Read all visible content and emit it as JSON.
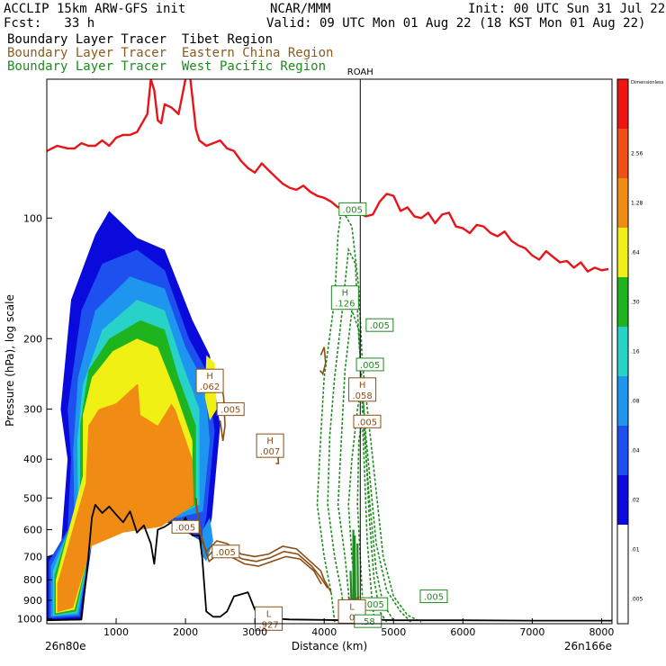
{
  "header": {
    "model": "ACCLIP 15km ARW-GFS init",
    "org": "NCAR/MMM",
    "init": "Init: 00 UTC Sun 31 Jul 22",
    "fcst": "Fcst:   33 h",
    "valid": "Valid: 09 UTC Mon 01 Aug 22 (18 KST Mon 01 Aug 22)"
  },
  "legend_lines": [
    {
      "text": "Boundary Layer Tracer  Tibet Region",
      "color": "#000000"
    },
    {
      "text": "Boundary Layer Tracer  Eastern China Region",
      "color": "#8B5A1E"
    },
    {
      "text": "Boundary Layer Tracer  West Pacific Region",
      "color": "#1F8A1F"
    }
  ],
  "colors": {
    "tropopause": "#E8141A",
    "terrain": "#000000",
    "eastern_china": "#8B4E14",
    "west_pacific": "#1F8A1F"
  },
  "chart_data": {
    "type": "heatmap",
    "xlabel": "Distance (km)",
    "ylabel": "Pressure (hPa), log scale",
    "x_ticks": [
      1000,
      2000,
      3000,
      4000,
      5000,
      6000,
      7000,
      8000
    ],
    "y_ticks": [
      100,
      200,
      300,
      400,
      500,
      600,
      700,
      800,
      900,
      1000
    ],
    "xlim": [
      0,
      8150
    ],
    "ylim_hpa": [
      1030,
      45
    ],
    "y_scale": "log",
    "left_endpoint": "26n80e",
    "right_endpoint": "26n166e",
    "marker": {
      "label": "ROAH",
      "x": 4520
    },
    "colorbar": {
      "title": "Dimensionless",
      "levels": [
        ".005",
        ".01",
        ".02",
        ".04",
        ".08",
        ".16",
        ".30",
        ".64",
        "1.28",
        "2.56"
      ],
      "colors": [
        "#FFFFFF",
        "#FFFFFF",
        "#0A0ADC",
        "#1E50F0",
        "#1E96F0",
        "#28D2C8",
        "#1EB41E",
        "#F0F014",
        "#F08C14",
        "#F05014",
        "#F01414"
      ]
    },
    "series": [
      {
        "name": "tropopause",
        "x": [
          0,
          150,
          300,
          400,
          500,
          600,
          700,
          800,
          900,
          1000,
          1100,
          1200,
          1300,
          1450,
          1500,
          1550,
          1600,
          1650,
          1700,
          1800,
          1900,
          2000,
          2050,
          2100,
          2150,
          2200,
          2300,
          2400,
          2500,
          2600,
          2700,
          2800,
          2900,
          3000,
          3100,
          3200,
          3300,
          3400,
          3500,
          3600,
          3700,
          3800,
          3900,
          4000,
          4100,
          4200,
          4300,
          4400,
          4500,
          4600,
          4700,
          4800,
          4900,
          5000,
          5100,
          5200,
          5300,
          5400,
          5500,
          5600,
          5700,
          5800,
          5900,
          6000,
          6100,
          6200,
          6300,
          6400,
          6500,
          6600,
          6700,
          6800,
          6900,
          7000,
          7100,
          7200,
          7300,
          7400,
          7500,
          7600,
          7700,
          7800,
          7900,
          8000,
          8100
        ],
        "y": [
          68,
          66,
          67,
          67,
          65,
          66,
          66,
          64,
          66,
          63,
          62,
          62,
          61,
          55,
          45,
          48,
          57,
          58,
          52,
          53,
          55,
          45,
          42,
          50,
          60,
          64,
          66,
          65,
          64,
          67,
          68,
          72,
          75,
          77,
          73,
          76,
          79,
          82,
          84,
          85,
          83,
          86,
          88,
          89,
          91,
          94,
          93,
          95,
          97,
          99,
          98,
          91,
          87,
          88,
          96,
          94,
          99,
          100,
          97,
          103,
          98,
          97,
          105,
          106,
          109,
          104,
          105,
          109,
          111,
          108,
          114,
          117,
          119,
          124,
          127,
          121,
          125,
          129,
          128,
          133,
          129,
          136,
          133,
          135,
          134
        ]
      },
      {
        "name": "terrain",
        "x": [
          0,
          500,
          600,
          650,
          700,
          800,
          900,
          1000,
          1100,
          1200,
          1300,
          1400,
          1500,
          1550,
          1600,
          1700,
          1800,
          1900,
          2000,
          2100,
          2200,
          2240,
          2300,
          2400,
          2500,
          2600,
          2700,
          2800,
          2900,
          3000,
          3100,
          3200,
          3300,
          3500,
          4000,
          4300,
          4500,
          4600,
          4700,
          5000,
          6000,
          7000,
          8150
        ],
        "y": [
          1010,
          1005,
          700,
          560,
          520,
          545,
          525,
          550,
          575,
          540,
          610,
          585,
          650,
          730,
          600,
          590,
          575,
          600,
          560,
          620,
          620,
          700,
          960,
          990,
          990,
          960,
          880,
          870,
          860,
          950,
          1000,
          1005,
          1000,
          1005,
          1008,
          1010,
          1010,
          990,
          1005,
          1010,
          1010,
          1012,
          1012
        ]
      }
    ],
    "box_labels": [
      {
        "text": ".005",
        "x": 4410,
        "y": 95,
        "series": "West Pacific"
      },
      {
        "text": "H",
        "sub": ".126",
        "x": 4300,
        "y": 158,
        "series": "West Pacific"
      },
      {
        "text": ".005",
        "x": 4800,
        "y": 185,
        "series": "West Pacific"
      },
      {
        "text": ".005",
        "x": 4660,
        "y": 232,
        "series": "West Pacific"
      },
      {
        "text": "H",
        "sub": ".058",
        "x": 4550,
        "y": 268,
        "series": "Eastern China"
      },
      {
        "text": ".005",
        "x": 4620,
        "y": 322,
        "series": "Eastern China"
      },
      {
        "text": "H",
        "sub": ".062",
        "x": 2350,
        "y": 255,
        "series": "Eastern China"
      },
      {
        "text": ".005",
        "x": 2650,
        "y": 300,
        "series": "Eastern China"
      },
      {
        "text": "H",
        "sub": ".007",
        "x": 3220,
        "y": 370,
        "series": "Eastern China"
      },
      {
        "text": ".005",
        "x": 2000,
        "y": 590,
        "series": "Eastern China"
      },
      {
        "text": ".005",
        "x": 2580,
        "y": 680,
        "series": "Eastern China"
      },
      {
        "text": ".005",
        "x": 5580,
        "y": 880,
        "series": "West Pacific"
      },
      {
        "text": ".005",
        "x": 4720,
        "y": 920,
        "series": "West Pacific"
      },
      {
        "text": "L",
        "sub": "0",
        "x": 4400,
        "y": 960,
        "series": "Eastern China"
      },
      {
        "text": "L",
        "sub": ".927",
        "x": 3200,
        "y": 1000,
        "series": "Eastern China"
      },
      {
        "text": ".58",
        "x": 4630,
        "y": 1015,
        "series": "West Pacific"
      }
    ]
  }
}
